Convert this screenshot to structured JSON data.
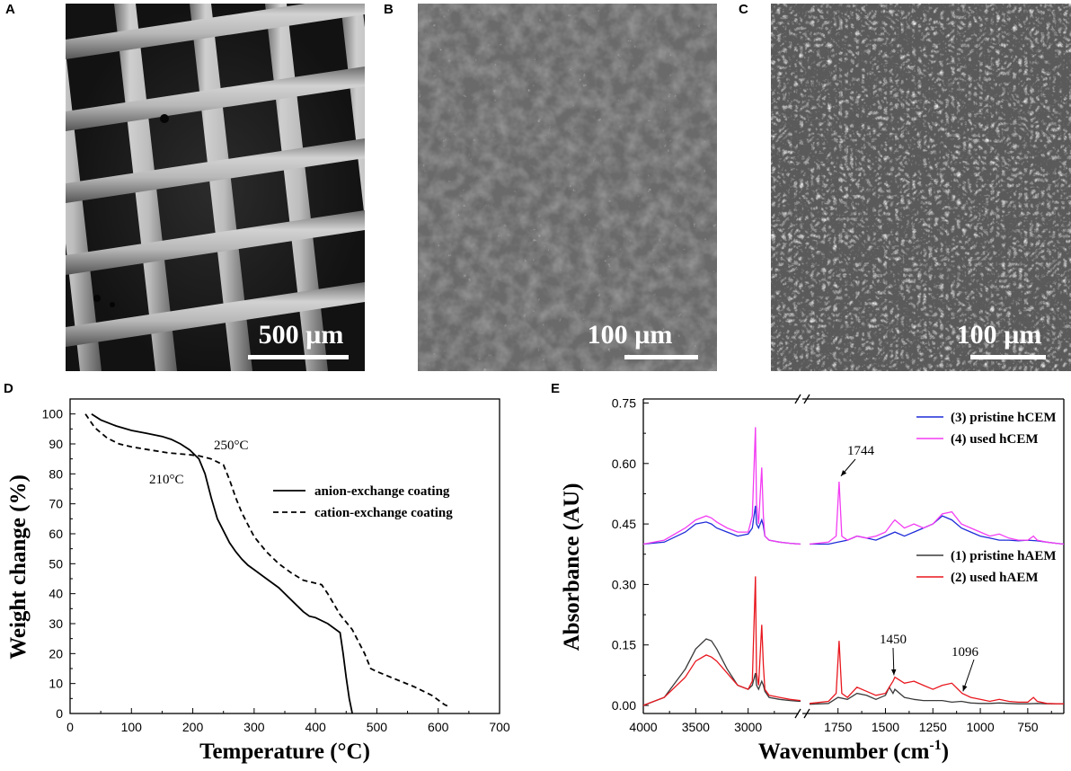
{
  "panels": {
    "A": {
      "letter": "A",
      "scale_label": "500 µm"
    },
    "B": {
      "letter": "B",
      "scale_label": "100 µm"
    },
    "C": {
      "letter": "C",
      "scale_label": "100 µm"
    },
    "D": {
      "letter": "D"
    },
    "E": {
      "letter": "E"
    }
  },
  "chart_data": [
    {
      "type": "line",
      "panel": "D",
      "xlabel": "Temperature (°C)",
      "ylabel": "Weight change (%)",
      "xlim": [
        0,
        700
      ],
      "ylim": [
        0,
        105
      ],
      "xticks": [
        0,
        100,
        200,
        300,
        400,
        500,
        600,
        700
      ],
      "yticks": [
        0,
        10,
        20,
        30,
        40,
        50,
        60,
        70,
        80,
        90,
        100
      ],
      "grid": false,
      "legend_position": "right",
      "series": [
        {
          "name": "anion-exchange coating",
          "style": "solid",
          "color": "#000000",
          "x": [
            35,
            50,
            75,
            100,
            125,
            150,
            165,
            180,
            195,
            210,
            220,
            230,
            240,
            250,
            260,
            270,
            280,
            290,
            300,
            320,
            340,
            360,
            380,
            390,
            400,
            420,
            440,
            445,
            450,
            455,
            460
          ],
          "y": [
            100,
            98,
            96,
            94.5,
            93.5,
            92.5,
            91.5,
            90,
            88,
            85,
            80,
            72,
            65,
            61,
            57,
            54,
            51.5,
            49.5,
            48,
            45,
            42,
            38,
            34,
            32.5,
            32,
            30,
            27,
            20,
            12,
            5,
            0
          ]
        },
        {
          "name": "cation-exchange coating",
          "style": "dashed",
          "color": "#000000",
          "x": [
            25,
            40,
            60,
            80,
            100,
            130,
            160,
            190,
            210,
            230,
            250,
            260,
            270,
            280,
            290,
            300,
            320,
            340,
            360,
            380,
            400,
            410,
            420,
            440,
            460,
            480,
            490,
            500,
            530,
            560,
            590,
            610,
            620
          ],
          "y": [
            100,
            95.5,
            92,
            90,
            89,
            88,
            87,
            86.5,
            86,
            85,
            83,
            78,
            72,
            67,
            63,
            59,
            54,
            50,
            47,
            44.5,
            43.5,
            43,
            40,
            33,
            28,
            20,
            15,
            14,
            11.5,
            9,
            6,
            3,
            2
          ]
        }
      ],
      "annotations": [
        "210°C",
        "250°C"
      ]
    },
    {
      "type": "line",
      "panel": "E",
      "xlabel": "Wavenumber (cm",
      "xlabel_superscript": "-1",
      "xlabel_suffix": ")",
      "ylabel": "Absorbance (AU)",
      "ylim": [
        -0.02,
        0.76
      ],
      "yticks": [
        "0.00",
        "0.15",
        "0.30",
        "0.45",
        "0.60",
        "0.75"
      ],
      "xticks_left": [
        "4000",
        "3500",
        "3000"
      ],
      "xticks_right": [
        "1750",
        "1500",
        "1250",
        "1000",
        "750"
      ],
      "axis_break": true,
      "x_segments": [
        [
          4000,
          2500
        ],
        [
          1900,
          560
        ]
      ],
      "grid": false,
      "series": [
        {
          "name": "(1) pristine hAEM",
          "color": "#3a3a3a",
          "x": [
            4000,
            3800,
            3600,
            3500,
            3400,
            3350,
            3300,
            3200,
            3100,
            3000,
            2960,
            2930,
            2920,
            2900,
            2870,
            2855,
            2840,
            2800,
            2700,
            2600,
            2500,
            1900,
            1800,
            1750,
            1700,
            1650,
            1600,
            1550,
            1500,
            1480,
            1460,
            1450,
            1400,
            1350,
            1300,
            1250,
            1200,
            1150,
            1100,
            1050,
            1000,
            950,
            900,
            850,
            800,
            750,
            700,
            650,
            600,
            560
          ],
          "y": [
            0.0,
            0.02,
            0.09,
            0.14,
            0.165,
            0.16,
            0.14,
            0.09,
            0.05,
            0.04,
            0.05,
            0.08,
            0.05,
            0.04,
            0.06,
            0.05,
            0.035,
            0.02,
            0.015,
            0.012,
            0.01,
            0.003,
            0.005,
            0.02,
            0.015,
            0.03,
            0.025,
            0.015,
            0.025,
            0.045,
            0.03,
            0.04,
            0.02,
            0.015,
            0.012,
            0.012,
            0.012,
            0.008,
            0.01,
            0.006,
            0.005,
            0.005,
            0.006,
            0.005,
            0.004,
            0.004,
            0.005,
            0.004,
            0.004,
            0.004
          ]
        },
        {
          "name": "(2) used hAEM",
          "color": "#e8171e",
          "x": [
            4000,
            3800,
            3600,
            3500,
            3400,
            3350,
            3300,
            3200,
            3100,
            3000,
            2960,
            2930,
            2920,
            2900,
            2870,
            2855,
            2840,
            2800,
            2700,
            2600,
            2500,
            1900,
            1800,
            1760,
            1744,
            1730,
            1700,
            1650,
            1600,
            1550,
            1500,
            1460,
            1450,
            1400,
            1350,
            1300,
            1250,
            1200,
            1150,
            1096,
            1050,
            1000,
            950,
            900,
            850,
            800,
            750,
            720,
            700,
            650,
            600,
            560
          ],
          "y": [
            0.0,
            0.02,
            0.07,
            0.11,
            0.125,
            0.12,
            0.11,
            0.08,
            0.05,
            0.04,
            0.06,
            0.32,
            0.08,
            0.05,
            0.2,
            0.1,
            0.04,
            0.025,
            0.02,
            0.015,
            0.012,
            0.005,
            0.01,
            0.03,
            0.16,
            0.03,
            0.02,
            0.045,
            0.035,
            0.025,
            0.03,
            0.06,
            0.07,
            0.055,
            0.06,
            0.05,
            0.04,
            0.05,
            0.055,
            0.03,
            0.02,
            0.015,
            0.01,
            0.015,
            0.01,
            0.008,
            0.008,
            0.02,
            0.01,
            0.005,
            0.004,
            0.004
          ]
        },
        {
          "name": "(3) pristine hCEM",
          "color": "#1e2bd8",
          "x": [
            4000,
            3800,
            3600,
            3500,
            3400,
            3350,
            3300,
            3200,
            3100,
            3000,
            2960,
            2930,
            2920,
            2900,
            2870,
            2855,
            2840,
            2800,
            2700,
            2600,
            2500,
            1900,
            1800,
            1750,
            1700,
            1650,
            1600,
            1550,
            1500,
            1450,
            1400,
            1350,
            1300,
            1250,
            1200,
            1150,
            1100,
            1050,
            1000,
            950,
            900,
            850,
            800,
            750,
            700,
            650,
            600,
            560
          ],
          "y": [
            0.4,
            0.405,
            0.43,
            0.45,
            0.455,
            0.45,
            0.44,
            0.43,
            0.42,
            0.425,
            0.44,
            0.495,
            0.45,
            0.44,
            0.46,
            0.445,
            0.42,
            0.41,
            0.405,
            0.402,
            0.4,
            0.4,
            0.4,
            0.405,
            0.41,
            0.42,
            0.415,
            0.41,
            0.42,
            0.43,
            0.42,
            0.43,
            0.44,
            0.45,
            0.47,
            0.46,
            0.44,
            0.43,
            0.42,
            0.415,
            0.41,
            0.41,
            0.408,
            0.41,
            0.408,
            0.405,
            0.402,
            0.4
          ]
        },
        {
          "name": "(4) used hCEM",
          "color": "#f33cf2",
          "x": [
            4000,
            3800,
            3600,
            3500,
            3400,
            3350,
            3300,
            3200,
            3100,
            3000,
            2960,
            2930,
            2920,
            2900,
            2870,
            2855,
            2840,
            2800,
            2700,
            2600,
            2500,
            1900,
            1800,
            1760,
            1744,
            1730,
            1700,
            1650,
            1600,
            1550,
            1500,
            1460,
            1450,
            1400,
            1350,
            1300,
            1250,
            1200,
            1150,
            1100,
            1050,
            1000,
            950,
            900,
            850,
            800,
            750,
            720,
            700,
            650,
            600,
            560
          ],
          "y": [
            0.4,
            0.41,
            0.44,
            0.46,
            0.47,
            0.465,
            0.455,
            0.44,
            0.43,
            0.43,
            0.47,
            0.69,
            0.5,
            0.45,
            0.59,
            0.47,
            0.42,
            0.41,
            0.405,
            0.402,
            0.4,
            0.4,
            0.405,
            0.42,
            0.555,
            0.42,
            0.41,
            0.42,
            0.415,
            0.42,
            0.43,
            0.455,
            0.46,
            0.44,
            0.45,
            0.44,
            0.45,
            0.475,
            0.48,
            0.45,
            0.44,
            0.43,
            0.42,
            0.425,
            0.415,
            0.41,
            0.41,
            0.42,
            0.41,
            0.405,
            0.402,
            0.4
          ]
        }
      ],
      "annotations": [
        "1744",
        "1450",
        "1096"
      ]
    }
  ]
}
